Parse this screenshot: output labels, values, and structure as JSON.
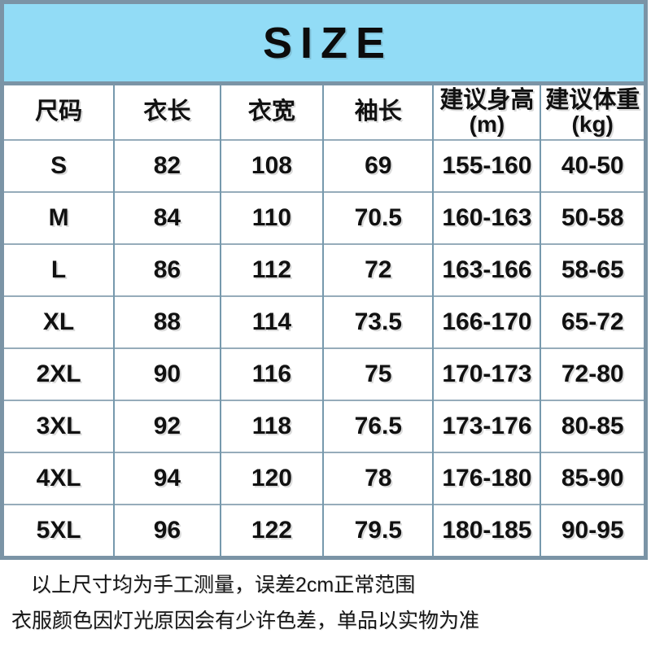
{
  "banner": {
    "title": "SIZE"
  },
  "colors": {
    "banner_bg": "#92dcf6",
    "frame_border": "#7b94a6",
    "grid_vertical": "#7699ad",
    "grid_horizontal": "#96acba",
    "text": "#111111"
  },
  "table": {
    "columns": [
      {
        "label": "尺码",
        "unit": ""
      },
      {
        "label": "衣长",
        "unit": ""
      },
      {
        "label": "衣宽",
        "unit": ""
      },
      {
        "label": "袖长",
        "unit": ""
      },
      {
        "label": "建议身高",
        "unit": "(m)"
      },
      {
        "label": "建议体重",
        "unit": "(kg)"
      }
    ],
    "rows": [
      [
        "S",
        "82",
        "108",
        "69",
        "155-160",
        "40-50"
      ],
      [
        "M",
        "84",
        "110",
        "70.5",
        "160-163",
        "50-58"
      ],
      [
        "L",
        "86",
        "112",
        "72",
        "163-166",
        "58-65"
      ],
      [
        "XL",
        "88",
        "114",
        "73.5",
        "166-170",
        "65-72"
      ],
      [
        "2XL",
        "90",
        "116",
        "75",
        "170-173",
        "72-80"
      ],
      [
        "3XL",
        "92",
        "118",
        "76.5",
        "173-176",
        "80-85"
      ],
      [
        "4XL",
        "94",
        "120",
        "78",
        "176-180",
        "85-90"
      ],
      [
        "5XL",
        "96",
        "122",
        "79.5",
        "180-185",
        "90-95"
      ]
    ]
  },
  "notes": [
    "以上尺寸均为手工测量，误差2cm正常范围",
    "衣服颜色因灯光原因会有少许色差，单品以实物为准"
  ]
}
